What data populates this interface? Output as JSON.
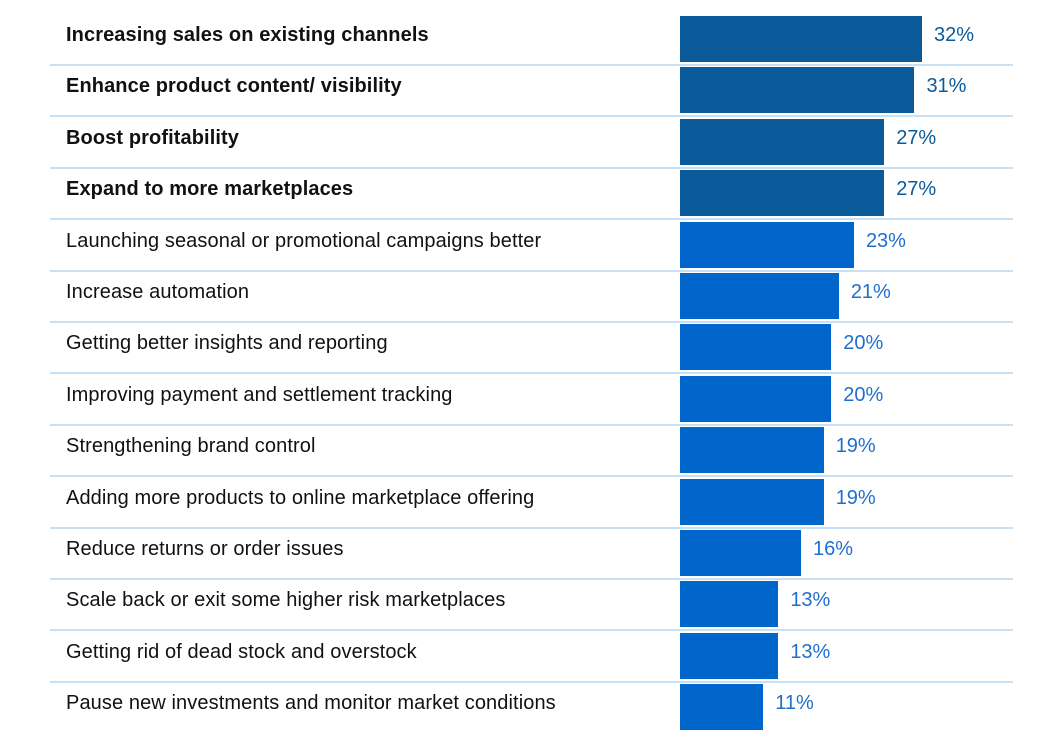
{
  "chart_data": {
    "type": "bar",
    "orientation": "horizontal",
    "title": "",
    "xlabel": "",
    "ylabel": "",
    "xlim": [
      0,
      32
    ],
    "value_suffix": "%",
    "grid": false,
    "legend": "none",
    "colors": {
      "highlight_bar": "#0b5a99",
      "bar": "#0066cc",
      "highlight_value_text": "#0b5a99",
      "value_text": "#1f6fcf",
      "separator": "#c6e0f5",
      "label_text": "#111111"
    },
    "categories": [
      "Increasing sales on existing channels",
      "Enhance product content/ visibility",
      "Boost profitability",
      "Expand to more marketplaces",
      "Launching seasonal or promotional campaigns better",
      "Increase automation",
      "Getting better insights and reporting",
      "Improving payment and settlement tracking",
      "Strengthening brand control",
      "Adding more products to online marketplace offering",
      "Reduce returns or order issues",
      "Scale back or exit some higher risk marketplaces",
      "Getting rid of dead stock and overstock",
      "Pause new investments and monitor market conditions"
    ],
    "values": [
      32,
      31,
      27,
      27,
      23,
      21,
      20,
      20,
      19,
      19,
      16,
      13,
      13,
      11
    ],
    "value_labels": [
      "32%",
      "31%",
      "27%",
      "27%",
      "23%",
      "21%",
      "20%",
      "20%",
      "19%",
      "19%",
      "16%",
      "13%",
      "13%",
      "11%"
    ],
    "highlighted": [
      true,
      true,
      true,
      true,
      false,
      false,
      false,
      false,
      false,
      false,
      false,
      false,
      false,
      false
    ]
  }
}
